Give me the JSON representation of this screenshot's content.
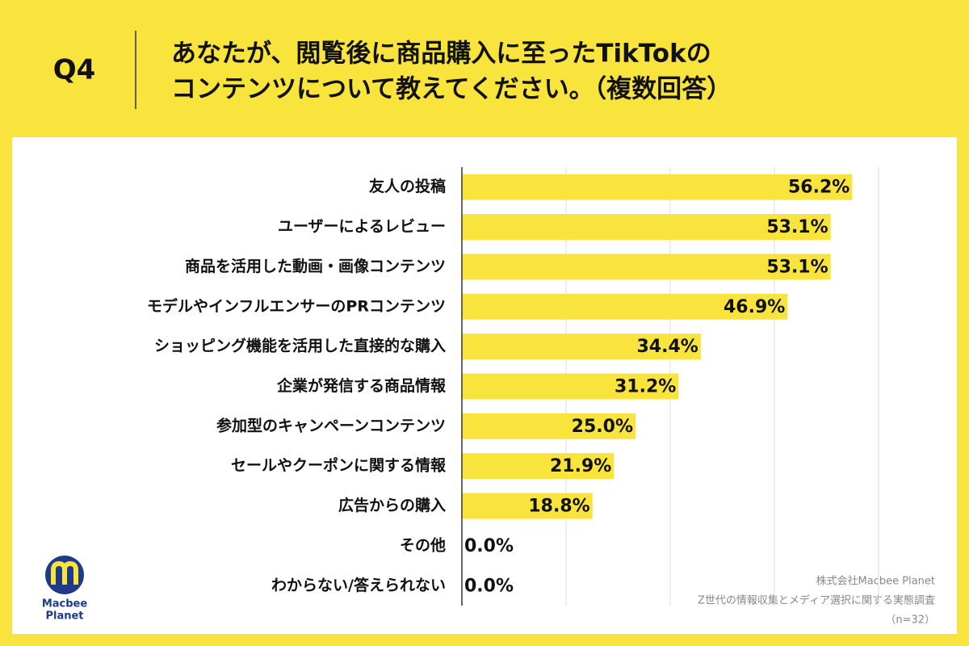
{
  "question": "Q4",
  "chart_data": {
    "type": "bar",
    "orientation": "horizontal",
    "title": [
      "あなたが、閲覧後に商品購入に至ったTikTokの",
      "コンテンツについて教えてください。（複数回答）"
    ],
    "categories": [
      "友人の投稿",
      "ユーザーによるレビュー",
      "商品を活用した動画・画像コンテンツ",
      "モデルやインフルエンサーのPRコンテンツ",
      "ショッピング機能を活用した直接的な購入",
      "企業が発信する商品情報",
      "参加型のキャンペーンコンテンツ",
      "セールやクーポンに関する情報",
      "広告からの購入",
      "その他",
      "わからない/答えられない"
    ],
    "values": [
      56.2,
      53.1,
      53.1,
      46.9,
      34.4,
      31.2,
      25.0,
      21.9,
      18.8,
      0,
      0
    ],
    "value_labels": [
      "56.2%",
      "53.1%",
      "53.1%",
      "46.9%",
      "34.4%",
      "31.2%",
      "25.0%",
      "21.9%",
      "18.8%",
      "0.0%",
      "0.0%"
    ],
    "color": "#f8e43c",
    "xlim": [
      0,
      60
    ],
    "xticks": [
      0,
      15,
      30,
      45,
      60
    ],
    "grid": true
  },
  "source": [
    "株式会社Macbee Planet",
    "Z世代の情報収集とメディア選択に関する実態調査",
    "（n=32）"
  ],
  "logo": [
    "Macbee",
    "Planet"
  ]
}
